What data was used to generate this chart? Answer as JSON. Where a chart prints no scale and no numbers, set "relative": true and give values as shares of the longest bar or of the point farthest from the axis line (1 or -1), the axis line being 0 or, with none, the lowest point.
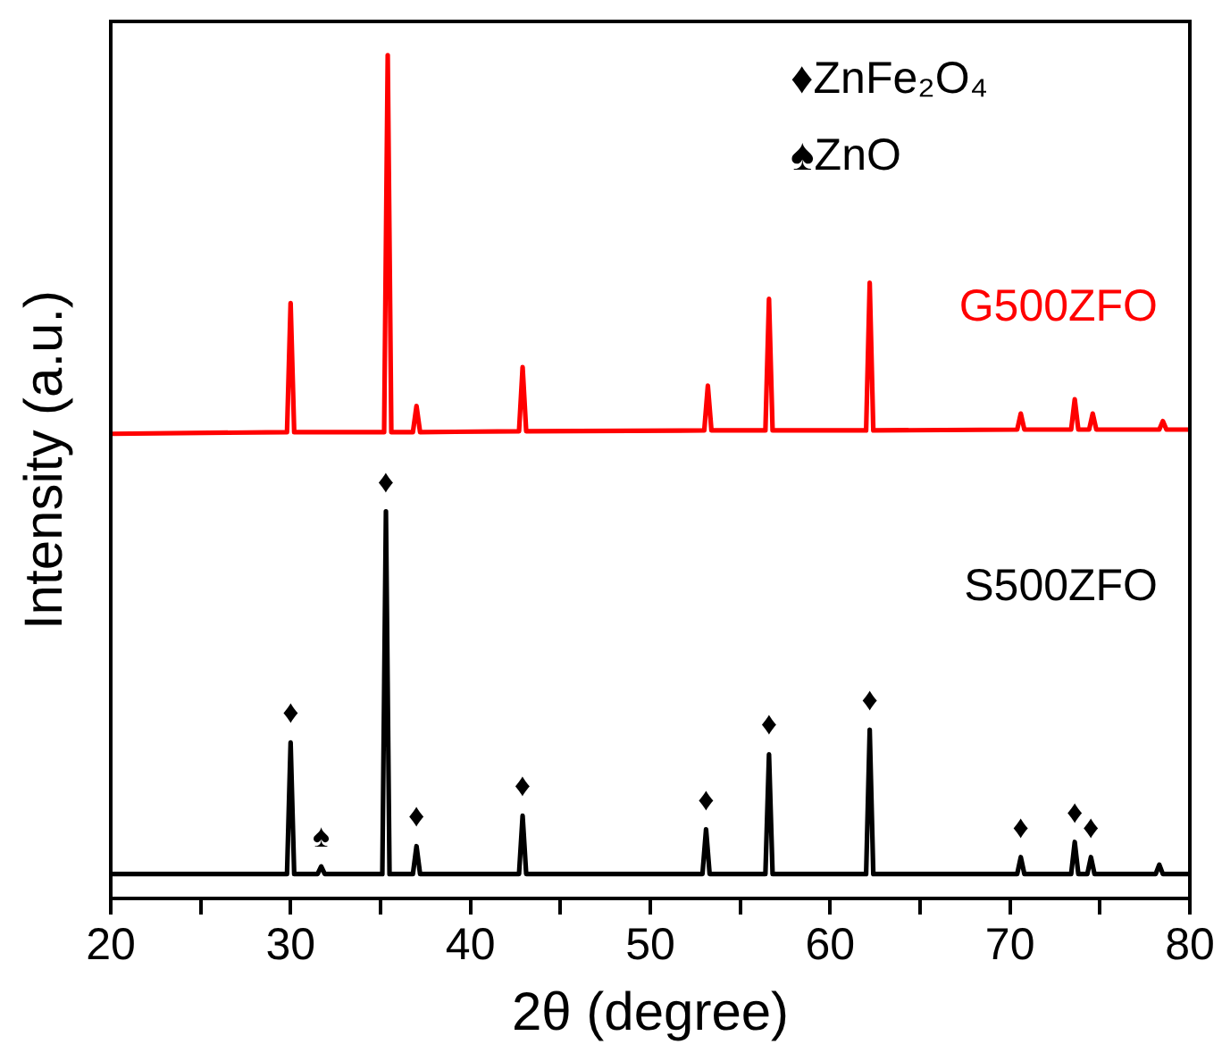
{
  "chart_data": {
    "type": "line",
    "relative": true,
    "xlabel": "2θ (degree)",
    "ylabel": "Intensity (a.u.)",
    "xlim": [
      20,
      80
    ],
    "xticks": [
      20,
      {
        "value": 25,
        "label": null
      },
      30,
      {
        "value": 35,
        "label": null
      },
      40,
      {
        "value": 45,
        "label": null
      },
      50,
      {
        "value": 55,
        "label": null
      },
      60,
      {
        "value": 65,
        "label": null
      },
      70,
      {
        "value": 75,
        "label": null
      },
      80
    ],
    "grid": false,
    "legend": false,
    "marker": "none",
    "line_style": "solid",
    "series": [
      {
        "name": "G500ZFO",
        "color": "#ff0000",
        "x": [
          20,
          29.8,
          30.0,
          30.2,
          35.2,
          35.4,
          35.6,
          36.8,
          37.0,
          37.2,
          42.7,
          42.9,
          43.1,
          53.0,
          53.2,
          53.4,
          56.4,
          56.6,
          56.8,
          62.0,
          62.2,
          62.4,
          70.4,
          70.6,
          70.8,
          73.4,
          73.6,
          73.8,
          74.4,
          74.6,
          74.8,
          78.3,
          78.5,
          78.7,
          80
        ],
        "values": [
          0.551,
          0.553,
          0.706,
          0.553,
          0.553,
          1,
          0.553,
          0.553,
          0.584,
          0.553,
          0.554,
          0.63,
          0.554,
          0.555,
          0.608,
          0.555,
          0.555,
          0.711,
          0.555,
          0.555,
          0.73,
          0.555,
          0.556,
          0.575,
          0.556,
          0.556,
          0.592,
          0.556,
          0.556,
          0.575,
          0.556,
          0.556,
          0.566,
          0.556,
          0.556
        ]
      },
      {
        "name": "S500ZFO",
        "color": "#000000",
        "x": [
          20,
          29.8,
          30.0,
          30.2,
          31.5,
          31.7,
          31.9,
          35.1,
          35.3,
          35.5,
          36.8,
          37.0,
          37.2,
          42.7,
          42.9,
          43.1,
          52.9,
          53.1,
          53.3,
          56.4,
          56.6,
          56.8,
          62.0,
          62.2,
          62.4,
          70.4,
          70.6,
          70.8,
          73.4,
          73.6,
          73.8,
          74.3,
          74.5,
          74.7,
          78.1,
          78.3,
          78.5,
          80
        ],
        "values": [
          0.029,
          0.029,
          0.185,
          0.029,
          0.029,
          0.038,
          0.029,
          0.029,
          0.459,
          0.029,
          0.029,
          0.062,
          0.029,
          0.029,
          0.098,
          0.029,
          0.029,
          0.082,
          0.029,
          0.029,
          0.171,
          0.029,
          0.029,
          0.2,
          0.029,
          0.029,
          0.049,
          0.029,
          0.029,
          0.067,
          0.029,
          0.029,
          0.049,
          0.029,
          0.029,
          0.04,
          0.029,
          0.029
        ]
      }
    ],
    "annotations": [
      "♦ZnFe₂O₄",
      "♠ZnO",
      {
        "text": "♦",
        "x": 30.0,
        "y": 0.185
      },
      {
        "text": "♠",
        "x": 31.7,
        "y": 0.038
      },
      {
        "text": "♦",
        "x": 35.3,
        "y": 0.459
      },
      {
        "text": "♦",
        "x": 37.0,
        "y": 0.062
      },
      {
        "text": "♦",
        "x": 42.9,
        "y": 0.098
      },
      {
        "text": "♦",
        "x": 53.1,
        "y": 0.082
      },
      {
        "text": "♦",
        "x": 56.6,
        "y": 0.171
      },
      {
        "text": "♦",
        "x": 62.2,
        "y": 0.2
      },
      {
        "text": "♦",
        "x": 70.6,
        "y": 0.049
      },
      {
        "text": "♦",
        "x": 73.6,
        "y": 0.067
      },
      {
        "text": "♦",
        "x": 74.5,
        "y": 0.049
      }
    ]
  }
}
